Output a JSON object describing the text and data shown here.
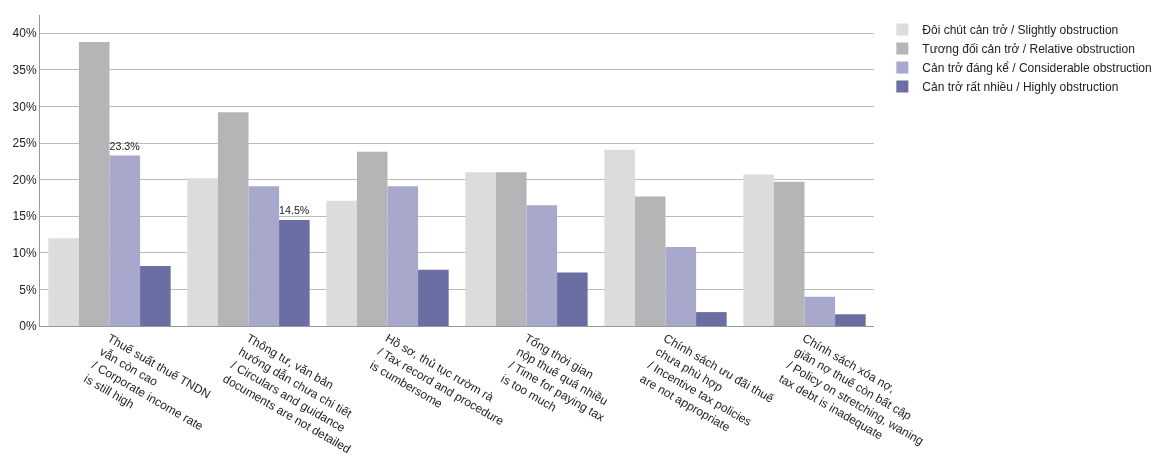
{
  "chart_data": {
    "type": "bar",
    "categories": [
      "Thuế suất thuế TNDN\nvẫn còn cao\n/ Corporate income rate\nis still high",
      "Thông tư, văn bản\nhướng dẫn chưa chi tiết\n/ Circulars and guidance\ndocuments are not detailed",
      "Hồ sơ, thủ tục rườm rà\n/ Tax record and procedure\nis cumbersome",
      "Tổng thời gian\nnộp thuế quá nhiều\n/ Time for paying tax\nis too much",
      "Chính sách ưu đãi thuế\nchưa phù hợp\n/ Incentive tax policies\nare not appropriate",
      "Chính sách xóa nợ,\ngiãn nợ thuế còn bất cập\n/ Policy on stretching, waning\ntax debt is inadequate"
    ],
    "series": [
      {
        "name": "Đôi chút cản trở / Slightly obstruction",
        "color": "#dcdcdd",
        "values": [
          12.0,
          20.2,
          17.1,
          21.0,
          24.1,
          20.7
        ]
      },
      {
        "name": "Tương đối cản trở / Relative obstruction",
        "color": "#b5b5b8",
        "values": [
          38.8,
          29.2,
          23.8,
          21.0,
          17.7,
          19.7
        ]
      },
      {
        "name": "Cản trở đáng kể / Considerable obstruction",
        "color": "#a7a8cb",
        "values": [
          23.3,
          19.1,
          19.1,
          16.5,
          10.8,
          4.0
        ],
        "value_labels": [
          "23.3%",
          null,
          null,
          null,
          null,
          null
        ]
      },
      {
        "name": "Cản trở rất nhiều / Highly obstruction",
        "color": "#6a6ea3",
        "values": [
          8.2,
          14.5,
          7.7,
          7.3,
          1.9,
          1.6
        ],
        "value_labels": [
          null,
          "14.5%",
          null,
          null,
          null,
          null
        ]
      }
    ],
    "ylim": [
      0,
      42.5
    ],
    "yticks": [
      {
        "value": 0,
        "label": "0%"
      },
      {
        "value": 5,
        "label": "5%"
      },
      {
        "value": 10,
        "label": "10%"
      },
      {
        "value": 15,
        "label": "15%"
      },
      {
        "value": 20,
        "label": "20%"
      },
      {
        "value": 25,
        "label": "25%"
      },
      {
        "value": 30,
        "label": "30%"
      },
      {
        "value": 35,
        "label": "35%"
      },
      {
        "value": 40,
        "label": "40%"
      }
    ],
    "grid": "y",
    "legend": "top right"
  }
}
